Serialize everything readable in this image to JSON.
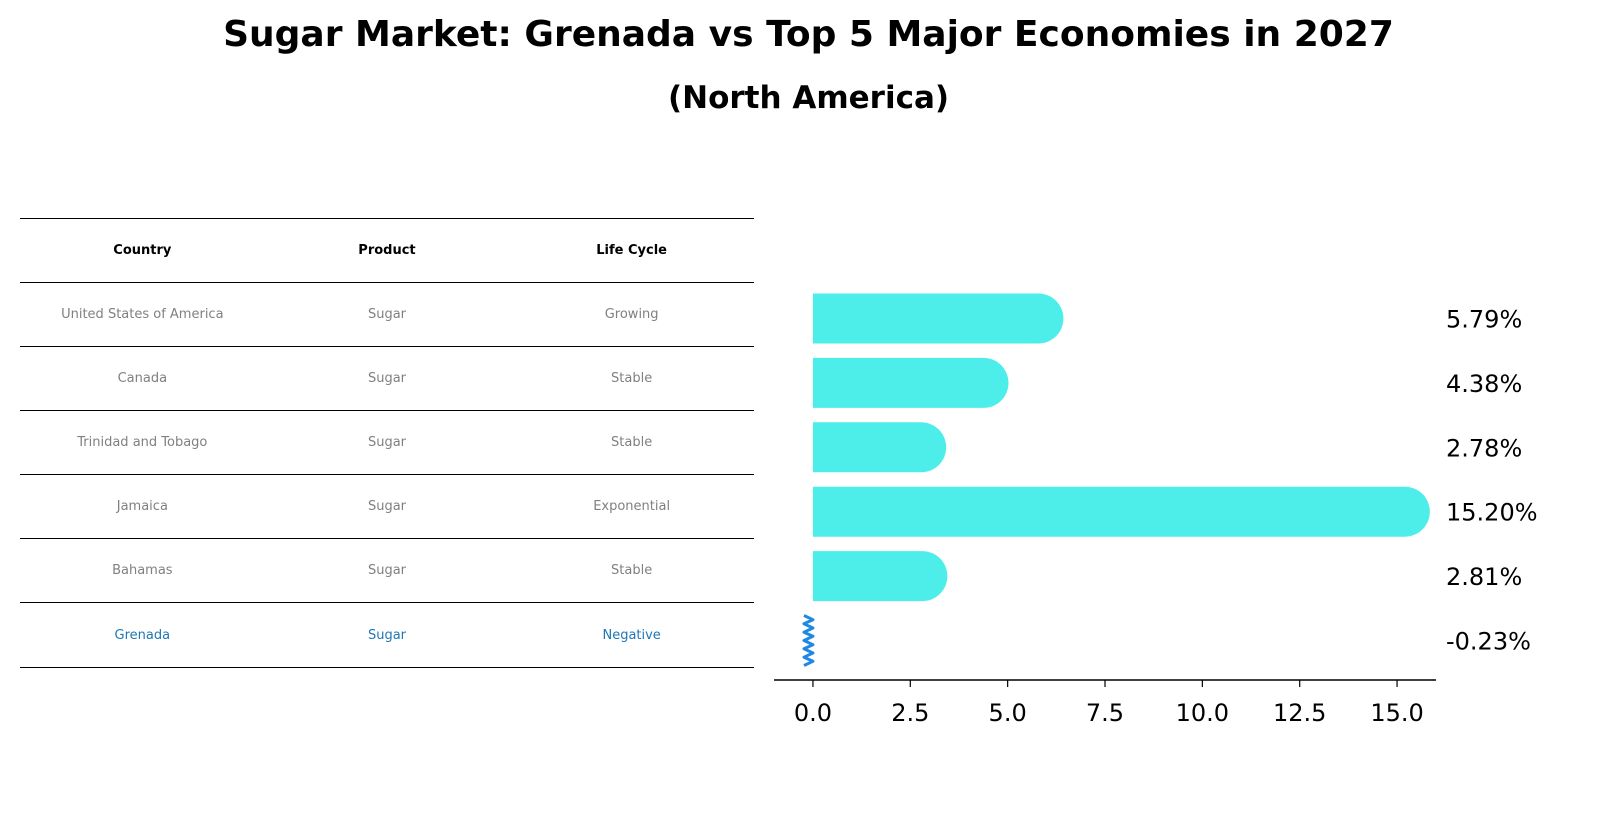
{
  "chart_data": {
    "type": "bar",
    "orientation": "horizontal",
    "title": "Sugar Market: Grenada vs Top 5 Major Economies in 2027",
    "subtitle": "(North America)",
    "categories": [
      "United States of America",
      "Canada",
      "Trinidad and Tobago",
      "Jamaica",
      "Bahamas",
      "Grenada"
    ],
    "values": [
      5.79,
      4.38,
      2.78,
      15.2,
      2.81,
      -0.23
    ],
    "value_labels": [
      "5.79%",
      "4.38%",
      "2.78%",
      "15.20%",
      "2.81%",
      "-0.23%"
    ],
    "xlim": [
      -1.0,
      16.0
    ],
    "xticks": [
      0.0,
      2.5,
      5.0,
      7.5,
      10.0,
      12.5,
      15.0
    ],
    "xtick_labels": [
      "0.0",
      "2.5",
      "5.0",
      "7.5",
      "10.0",
      "12.5",
      "15.0"
    ],
    "xlabel": "",
    "ylabel": "",
    "bar_color": "#4DEEEA",
    "highlight_color": "#1E88E5"
  },
  "table": {
    "headers": [
      "Country",
      "Product",
      "Life Cycle"
    ],
    "rows": [
      [
        "United States of America",
        "Sugar",
        "Growing"
      ],
      [
        "Canada",
        "Sugar",
        "Stable"
      ],
      [
        "Trinidad and Tobago",
        "Sugar",
        "Stable"
      ],
      [
        "Jamaica",
        "Sugar",
        "Exponential"
      ],
      [
        "Bahamas",
        "Sugar",
        "Stable"
      ],
      [
        "Grenada",
        "Sugar",
        "Negative"
      ]
    ]
  }
}
